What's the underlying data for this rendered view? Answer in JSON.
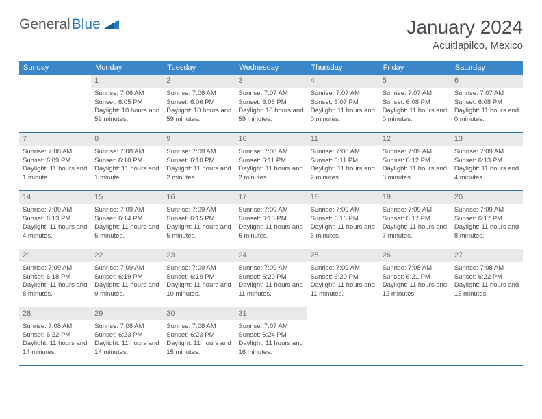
{
  "logo": {
    "text1": "General",
    "text2": "Blue"
  },
  "title": "January 2024",
  "location": "Acuitlapilco, Mexico",
  "colors": {
    "header_bg": "#3a86c8",
    "daynum_bg": "#e8e9e9",
    "border": "#2f6ea6",
    "text": "#4a4a4a",
    "logo_gray": "#555b60",
    "logo_blue": "#2a79b8"
  },
  "daysOfWeek": [
    "Sunday",
    "Monday",
    "Tuesday",
    "Wednesday",
    "Thursday",
    "Friday",
    "Saturday"
  ],
  "weeks": [
    [
      {
        "blank": true
      },
      {
        "n": "1",
        "sr": "7:06 AM",
        "ss": "6:05 PM",
        "dl": "10 hours and 59 minutes."
      },
      {
        "n": "2",
        "sr": "7:06 AM",
        "ss": "6:06 PM",
        "dl": "10 hours and 59 minutes."
      },
      {
        "n": "3",
        "sr": "7:07 AM",
        "ss": "6:06 PM",
        "dl": "10 hours and 59 minutes."
      },
      {
        "n": "4",
        "sr": "7:07 AM",
        "ss": "6:07 PM",
        "dl": "11 hours and 0 minutes."
      },
      {
        "n": "5",
        "sr": "7:07 AM",
        "ss": "6:08 PM",
        "dl": "11 hours and 0 minutes."
      },
      {
        "n": "6",
        "sr": "7:07 AM",
        "ss": "6:08 PM",
        "dl": "11 hours and 0 minutes."
      }
    ],
    [
      {
        "n": "7",
        "sr": "7:08 AM",
        "ss": "6:09 PM",
        "dl": "11 hours and 1 minute."
      },
      {
        "n": "8",
        "sr": "7:08 AM",
        "ss": "6:10 PM",
        "dl": "11 hours and 1 minute."
      },
      {
        "n": "9",
        "sr": "7:08 AM",
        "ss": "6:10 PM",
        "dl": "11 hours and 2 minutes."
      },
      {
        "n": "10",
        "sr": "7:08 AM",
        "ss": "6:11 PM",
        "dl": "11 hours and 2 minutes."
      },
      {
        "n": "11",
        "sr": "7:08 AM",
        "ss": "6:11 PM",
        "dl": "11 hours and 2 minutes."
      },
      {
        "n": "12",
        "sr": "7:09 AM",
        "ss": "6:12 PM",
        "dl": "11 hours and 3 minutes."
      },
      {
        "n": "13",
        "sr": "7:09 AM",
        "ss": "6:13 PM",
        "dl": "11 hours and 4 minutes."
      }
    ],
    [
      {
        "n": "14",
        "sr": "7:09 AM",
        "ss": "6:13 PM",
        "dl": "11 hours and 4 minutes."
      },
      {
        "n": "15",
        "sr": "7:09 AM",
        "ss": "6:14 PM",
        "dl": "11 hours and 5 minutes."
      },
      {
        "n": "16",
        "sr": "7:09 AM",
        "ss": "6:15 PM",
        "dl": "11 hours and 5 minutes."
      },
      {
        "n": "17",
        "sr": "7:09 AM",
        "ss": "6:15 PM",
        "dl": "11 hours and 6 minutes."
      },
      {
        "n": "18",
        "sr": "7:09 AM",
        "ss": "6:16 PM",
        "dl": "11 hours and 6 minutes."
      },
      {
        "n": "19",
        "sr": "7:09 AM",
        "ss": "6:17 PM",
        "dl": "11 hours and 7 minutes."
      },
      {
        "n": "20",
        "sr": "7:09 AM",
        "ss": "6:17 PM",
        "dl": "11 hours and 8 minutes."
      }
    ],
    [
      {
        "n": "21",
        "sr": "7:09 AM",
        "ss": "6:18 PM",
        "dl": "11 hours and 8 minutes."
      },
      {
        "n": "22",
        "sr": "7:09 AM",
        "ss": "6:19 PM",
        "dl": "11 hours and 9 minutes."
      },
      {
        "n": "23",
        "sr": "7:09 AM",
        "ss": "6:19 PM",
        "dl": "11 hours and 10 minutes."
      },
      {
        "n": "24",
        "sr": "7:09 AM",
        "ss": "6:20 PM",
        "dl": "11 hours and 11 minutes."
      },
      {
        "n": "25",
        "sr": "7:09 AM",
        "ss": "6:20 PM",
        "dl": "11 hours and 11 minutes."
      },
      {
        "n": "26",
        "sr": "7:08 AM",
        "ss": "6:21 PM",
        "dl": "11 hours and 12 minutes."
      },
      {
        "n": "27",
        "sr": "7:08 AM",
        "ss": "6:22 PM",
        "dl": "11 hours and 13 minutes."
      }
    ],
    [
      {
        "n": "28",
        "sr": "7:08 AM",
        "ss": "6:22 PM",
        "dl": "11 hours and 14 minutes."
      },
      {
        "n": "29",
        "sr": "7:08 AM",
        "ss": "6:23 PM",
        "dl": "11 hours and 14 minutes."
      },
      {
        "n": "30",
        "sr": "7:08 AM",
        "ss": "6:23 PM",
        "dl": "11 hours and 15 minutes."
      },
      {
        "n": "31",
        "sr": "7:07 AM",
        "ss": "6:24 PM",
        "dl": "11 hours and 16 minutes."
      },
      {
        "blank": true
      },
      {
        "blank": true
      },
      {
        "blank": true
      }
    ]
  ],
  "labels": {
    "sunrise": "Sunrise: ",
    "sunset": "Sunset: ",
    "daylight": "Daylight: "
  }
}
